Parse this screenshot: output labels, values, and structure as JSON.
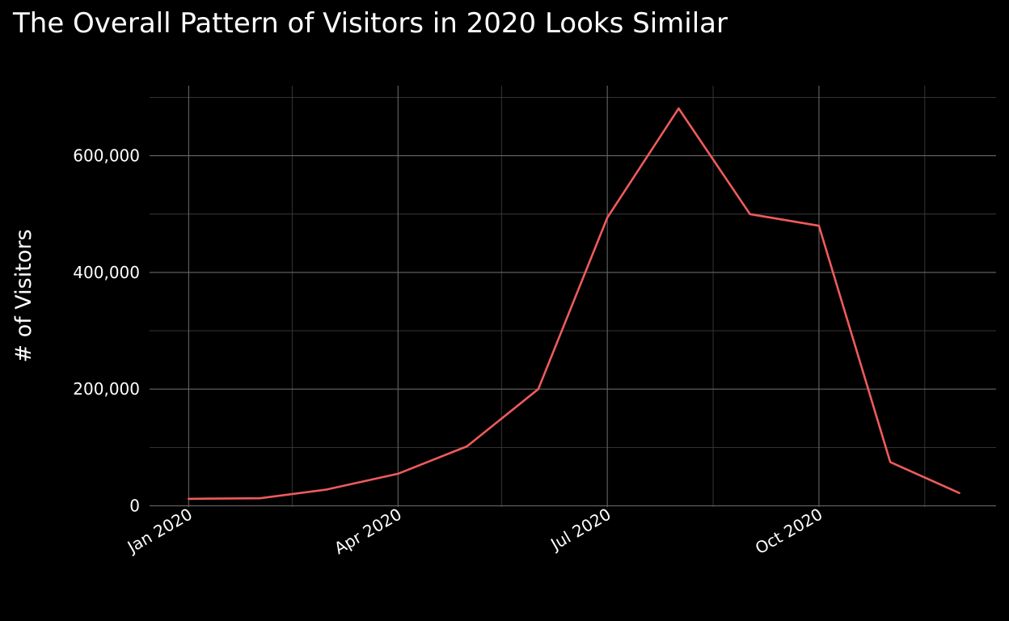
{
  "chart_data": {
    "type": "line",
    "title": "The Overall Pattern of Visitors in 2020 Looks Similar",
    "xlabel": "",
    "ylabel": "# of Visitors",
    "x": [
      "2020-01-01",
      "2020-02-01",
      "2020-03-01",
      "2020-04-01",
      "2020-05-01",
      "2020-06-01",
      "2020-07-01",
      "2020-08-01",
      "2020-09-01",
      "2020-10-01",
      "2020-11-01",
      "2020-12-01"
    ],
    "series": [
      {
        "values": [
          12000,
          13000,
          28000,
          55000,
          102000,
          200000,
          494000,
          681000,
          500000,
          480000,
          75000,
          22000
        ],
        "color": "#ef5b5b"
      }
    ],
    "x_ticks": [
      {
        "date": "2020-01-01",
        "label": "Jan 2020"
      },
      {
        "date": "2020-04-01",
        "label": "Apr 2020"
      },
      {
        "date": "2020-07-01",
        "label": "Jul 2020"
      },
      {
        "date": "2020-10-01",
        "label": "Oct 2020"
      }
    ],
    "x_minor_ticks": [
      "2020-02-15",
      "2020-05-16",
      "2020-08-16",
      "2020-11-16"
    ],
    "y_ticks": [
      {
        "value": 0,
        "label": "0"
      },
      {
        "value": 200000,
        "label": "200,000"
      },
      {
        "value": 400000,
        "label": "400,000"
      },
      {
        "value": 600000,
        "label": "600,000"
      }
    ],
    "y_minor_ticks": [
      100000,
      300000,
      500000,
      700000
    ],
    "ylim": [
      -2000,
      720000
    ],
    "xlim": [
      "2019-12-15",
      "2020-12-17"
    ],
    "grid": true,
    "background": "#000000"
  }
}
